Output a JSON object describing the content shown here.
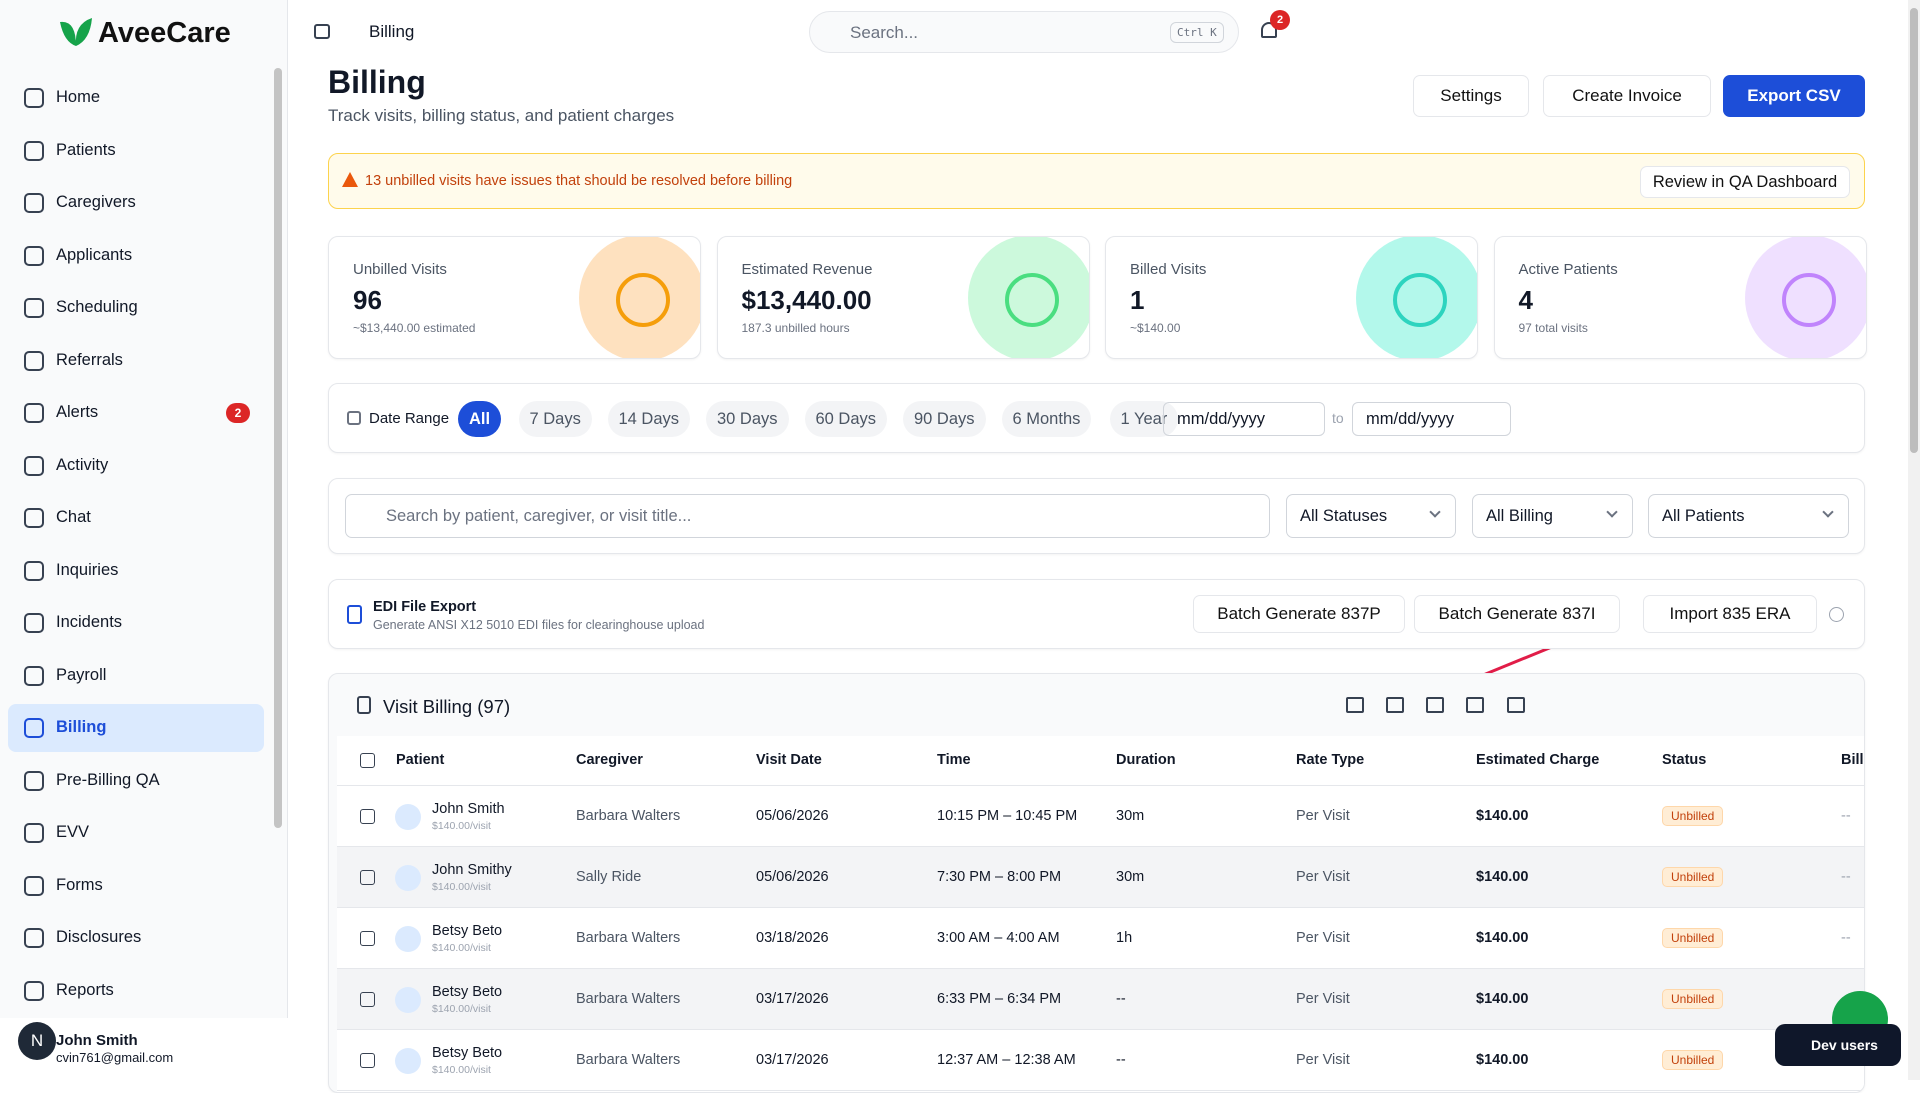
{
  "brand": "AveeCare",
  "sidebar": {
    "items": [
      "Home",
      "Patients",
      "Caregivers",
      "Applicants",
      "Scheduling",
      "Referrals",
      "Alerts",
      "Activity",
      "Chat",
      "Inquiries",
      "Incidents",
      "Payroll",
      "Billing",
      "Pre-Billing QA",
      "EVV",
      "Forms",
      "Disclosures",
      "Reports"
    ],
    "alerts_badge": "2",
    "user": {
      "initial": "N",
      "name": "John Smith",
      "email": "cvin761@gmail.com"
    }
  },
  "topbar": {
    "breadcrumb": "Billing",
    "search_placeholder": "Search...",
    "shortcut": "Ctrl K",
    "notifications": "2"
  },
  "header": {
    "title": "Billing",
    "subtitle": "Track visits, billing status, and patient charges",
    "buttons": [
      "Settings",
      "Create Invoice",
      "Export CSV"
    ]
  },
  "alert": {
    "text": "13 unbilled visits have issues that should be resolved before billing",
    "action": "Review in QA Dashboard"
  },
  "stats": [
    {
      "label": "Unbilled Visits",
      "value": "96",
      "sub": "~$13,440.00 estimated"
    },
    {
      "label": "Estimated Revenue",
      "value": "$13,440.00",
      "sub": "187.3 unbilled hours"
    },
    {
      "label": "Billed Visits",
      "value": "1",
      "sub": "~$140.00"
    },
    {
      "label": "Active Patients",
      "value": "4",
      "sub": "97 total visits"
    }
  ],
  "date_range": {
    "label": "Date Range",
    "options": [
      "All",
      "7 Days",
      "14 Days",
      "30 Days",
      "60 Days",
      "90 Days",
      "6 Months",
      "1 Year"
    ],
    "from": "mm/dd/yyyy",
    "to_word": "to",
    "to": "mm/dd/yyyy"
  },
  "filters": {
    "search_placeholder": "Search by patient, caregiver, or visit title...",
    "selects": [
      "All Statuses",
      "All Billing",
      "All Patients"
    ]
  },
  "edi": {
    "title": "EDI File Export",
    "subtitle": "Generate ANSI X12 5010 EDI files for clearinghouse upload",
    "buttons": [
      "Batch Generate 837P",
      "Batch Generate 837I",
      "Import 835 ERA"
    ]
  },
  "table": {
    "title": "Visit Billing (97)",
    "columns": [
      "Patient",
      "Caregiver",
      "Visit Date",
      "Time",
      "Duration",
      "Rate Type",
      "Estimated Charge",
      "Status",
      "Bill"
    ],
    "rows": [
      {
        "patient": "John Smith",
        "rate": "$140.00/visit",
        "cells": [
          "Barbara Walters",
          "05/06/2026",
          "10:15 PM – 10:45 PM",
          "30m",
          "Per Visit",
          "$140.00",
          "Unbilled",
          "--"
        ]
      },
      {
        "patient": "John Smithy",
        "rate": "$140.00/visit",
        "cells": [
          "Sally Ride",
          "05/06/2026",
          "7:30 PM – 8:00 PM",
          "30m",
          "Per Visit",
          "$140.00",
          "Unbilled",
          "--"
        ]
      },
      {
        "patient": "Betsy Beto",
        "rate": "$140.00/visit",
        "cells": [
          "Barbara Walters",
          "03/18/2026",
          "3:00 AM – 4:00 AM",
          "1h",
          "Per Visit",
          "$140.00",
          "Unbilled",
          "--"
        ]
      },
      {
        "patient": "Betsy Beto",
        "rate": "$140.00/visit",
        "cells": [
          "Barbara Walters",
          "03/17/2026",
          "6:33 PM – 6:34 PM",
          "--",
          "Per Visit",
          "$140.00",
          "Unbilled",
          "--"
        ]
      },
      {
        "patient": "Betsy Beto",
        "rate": "$140.00/visit",
        "cells": [
          "Barbara Walters",
          "03/17/2026",
          "12:37 AM – 12:38 AM",
          "--",
          "Per Visit",
          "$140.00",
          "Unbilled",
          "--"
        ]
      }
    ]
  },
  "dev_users": "Dev users"
}
